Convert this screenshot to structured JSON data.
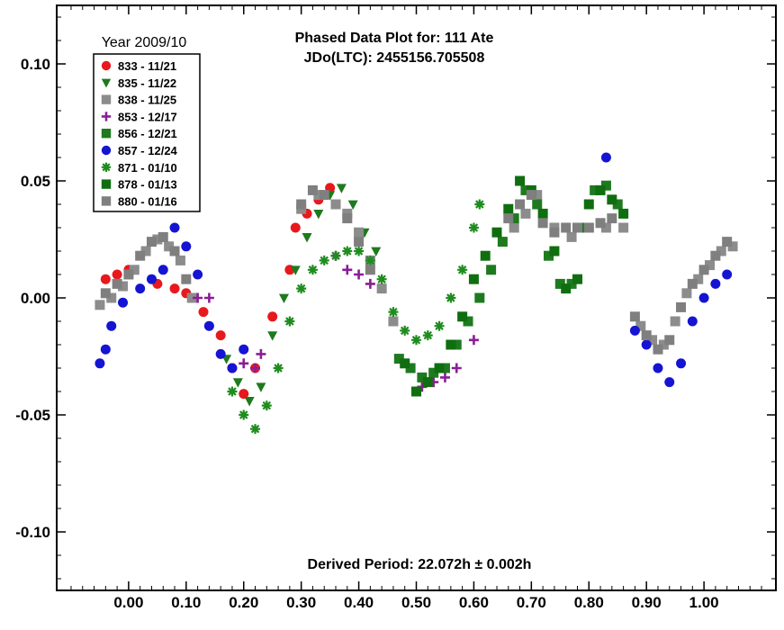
{
  "chart_data": {
    "type": "scatter",
    "title": "Phased Data Plot for: 111 Ate",
    "subtitle": "JDo(LTC): 2455156.705508",
    "annotation": "Derived Period: 22.072h ± 0.002h",
    "legend_title": "Year 2009/10",
    "legend_position": "top-left",
    "xlabel": "",
    "ylabel": "",
    "xlim": [
      -0.125,
      1.125
    ],
    "ylim": [
      0.125,
      -0.125
    ],
    "y_inverted": true,
    "grid": false,
    "x_ticks": [
      "0.00",
      "0.10",
      "0.20",
      "0.30",
      "0.40",
      "0.50",
      "0.60",
      "0.70",
      "0.80",
      "0.90",
      "1.00"
    ],
    "y_ticks": [
      "-0.10",
      "-0.05",
      "0.00",
      "0.05",
      "0.10"
    ],
    "series": [
      {
        "name": "833 - 11/21",
        "marker": "circle",
        "color": "#e8181c",
        "points": [
          [
            -0.04,
            0.008
          ],
          [
            -0.02,
            0.01
          ],
          [
            0.0,
            0.012
          ],
          [
            0.05,
            0.006
          ],
          [
            0.08,
            0.004
          ],
          [
            0.1,
            0.002
          ],
          [
            0.13,
            -0.006
          ],
          [
            0.16,
            -0.016
          ],
          [
            0.18,
            -0.03
          ],
          [
            0.2,
            -0.041
          ],
          [
            0.22,
            -0.03
          ],
          [
            0.25,
            -0.008
          ],
          [
            0.28,
            0.012
          ],
          [
            0.29,
            0.03
          ],
          [
            0.31,
            0.036
          ],
          [
            0.33,
            0.042
          ],
          [
            0.35,
            0.047
          ]
        ]
      },
      {
        "name": "835 - 11/22",
        "marker": "triangle-down",
        "color": "#1e7a1e",
        "points": [
          [
            0.17,
            -0.026
          ],
          [
            0.19,
            -0.036
          ],
          [
            0.21,
            -0.044
          ],
          [
            0.23,
            -0.038
          ],
          [
            0.25,
            -0.016
          ],
          [
            0.27,
            0.0
          ],
          [
            0.29,
            0.012
          ],
          [
            0.31,
            0.026
          ],
          [
            0.33,
            0.036
          ],
          [
            0.35,
            0.044
          ],
          [
            0.37,
            0.047
          ],
          [
            0.39,
            0.04
          ],
          [
            0.41,
            0.028
          ],
          [
            0.43,
            0.02
          ]
        ]
      },
      {
        "name": "838 - 11/25",
        "marker": "square",
        "color": "#8c8c8c",
        "points": [
          [
            -0.05,
            -0.003
          ],
          [
            -0.03,
            0.0
          ],
          [
            -0.01,
            0.005
          ],
          [
            0.01,
            0.012
          ],
          [
            0.03,
            0.02
          ],
          [
            0.05,
            0.025
          ],
          [
            0.07,
            0.022
          ],
          [
            0.09,
            0.016
          ],
          [
            0.11,
            0.0
          ],
          [
            0.3,
            0.038
          ],
          [
            0.33,
            0.044
          ],
          [
            0.36,
            0.04
          ],
          [
            0.38,
            0.036
          ],
          [
            0.4,
            0.028
          ],
          [
            0.42,
            0.016
          ],
          [
            0.44,
            0.004
          ],
          [
            0.46,
            -0.01
          ],
          [
            0.67,
            0.03
          ],
          [
            0.69,
            0.036
          ],
          [
            0.71,
            0.044
          ],
          [
            0.74,
            0.03
          ],
          [
            0.77,
            0.026
          ],
          [
            0.8,
            0.03
          ],
          [
            0.83,
            0.03
          ],
          [
            0.86,
            0.03
          ],
          [
            0.89,
            -0.012
          ],
          [
            0.91,
            -0.018
          ],
          [
            0.93,
            -0.02
          ],
          [
            0.95,
            -0.01
          ],
          [
            0.97,
            0.002
          ],
          [
            0.99,
            0.008
          ],
          [
            1.01,
            0.014
          ],
          [
            1.03,
            0.02
          ],
          [
            1.05,
            0.022
          ]
        ]
      },
      {
        "name": "853 - 12/17",
        "marker": "plus",
        "color": "#8a1e96",
        "points": [
          [
            0.12,
            0.0
          ],
          [
            0.14,
            0.0
          ],
          [
            0.2,
            -0.028
          ],
          [
            0.22,
            -0.03
          ],
          [
            0.23,
            -0.024
          ],
          [
            0.36,
            0.018
          ],
          [
            0.38,
            0.012
          ],
          [
            0.4,
            0.01
          ],
          [
            0.42,
            0.006
          ],
          [
            0.51,
            -0.038
          ],
          [
            0.53,
            -0.036
          ],
          [
            0.55,
            -0.034
          ],
          [
            0.57,
            -0.03
          ],
          [
            0.6,
            -0.018
          ]
        ]
      },
      {
        "name": "856 - 12/21",
        "marker": "square",
        "color": "#1e7a1e",
        "points": [
          [
            0.47,
            -0.026
          ],
          [
            0.49,
            -0.03
          ],
          [
            0.51,
            -0.034
          ],
          [
            0.53,
            -0.032
          ],
          [
            0.55,
            -0.03
          ],
          [
            0.57,
            -0.02
          ],
          [
            0.59,
            -0.01
          ],
          [
            0.61,
            0.0
          ],
          [
            0.63,
            0.012
          ],
          [
            0.65,
            0.024
          ],
          [
            0.67,
            0.034
          ],
          [
            0.69,
            0.046
          ],
          [
            0.71,
            0.04
          ],
          [
            0.73,
            0.018
          ],
          [
            0.75,
            0.006
          ],
          [
            0.77,
            0.006
          ],
          [
            0.79,
            0.03
          ],
          [
            0.81,
            0.046
          ],
          [
            0.83,
            0.048
          ],
          [
            0.85,
            0.04
          ]
        ]
      },
      {
        "name": "857 - 12/24",
        "marker": "circle",
        "color": "#1414d2",
        "points": [
          [
            -0.05,
            -0.028
          ],
          [
            -0.04,
            -0.022
          ],
          [
            -0.03,
            -0.012
          ],
          [
            -0.01,
            -0.002
          ],
          [
            0.02,
            0.004
          ],
          [
            0.04,
            0.008
          ],
          [
            0.06,
            0.012
          ],
          [
            0.08,
            0.03
          ],
          [
            0.1,
            0.022
          ],
          [
            0.12,
            0.01
          ],
          [
            0.14,
            -0.012
          ],
          [
            0.16,
            -0.024
          ],
          [
            0.18,
            -0.03
          ],
          [
            0.2,
            -0.022
          ],
          [
            0.83,
            0.06
          ],
          [
            0.88,
            -0.014
          ],
          [
            0.9,
            -0.02
          ],
          [
            0.92,
            -0.03
          ],
          [
            0.94,
            -0.036
          ],
          [
            0.96,
            -0.028
          ],
          [
            0.98,
            -0.01
          ],
          [
            1.0,
            0.0
          ],
          [
            1.02,
            0.006
          ],
          [
            1.04,
            0.01
          ]
        ]
      },
      {
        "name": "871 - 01/10",
        "marker": "asterisk",
        "color": "#1e8c1e",
        "points": [
          [
            0.18,
            -0.04
          ],
          [
            0.2,
            -0.05
          ],
          [
            0.22,
            -0.056
          ],
          [
            0.24,
            -0.046
          ],
          [
            0.26,
            -0.03
          ],
          [
            0.28,
            -0.01
          ],
          [
            0.3,
            0.004
          ],
          [
            0.32,
            0.012
          ],
          [
            0.34,
            0.016
          ],
          [
            0.36,
            0.018
          ],
          [
            0.38,
            0.02
          ],
          [
            0.4,
            0.02
          ],
          [
            0.42,
            0.016
          ],
          [
            0.44,
            0.008
          ],
          [
            0.46,
            -0.006
          ],
          [
            0.48,
            -0.014
          ],
          [
            0.5,
            -0.018
          ],
          [
            0.52,
            -0.016
          ],
          [
            0.54,
            -0.012
          ],
          [
            0.56,
            0.0
          ],
          [
            0.58,
            0.012
          ],
          [
            0.6,
            0.03
          ],
          [
            0.61,
            0.04
          ]
        ]
      },
      {
        "name": "878 - 01/13",
        "marker": "square",
        "color": "#0f6e0f",
        "points": [
          [
            0.48,
            -0.028
          ],
          [
            0.5,
            -0.04
          ],
          [
            0.52,
            -0.036
          ],
          [
            0.54,
            -0.03
          ],
          [
            0.56,
            -0.02
          ],
          [
            0.58,
            -0.008
          ],
          [
            0.6,
            0.008
          ],
          [
            0.62,
            0.018
          ],
          [
            0.64,
            0.028
          ],
          [
            0.66,
            0.038
          ],
          [
            0.68,
            0.05
          ],
          [
            0.7,
            0.046
          ],
          [
            0.72,
            0.036
          ],
          [
            0.74,
            0.02
          ],
          [
            0.76,
            0.004
          ],
          [
            0.78,
            0.008
          ],
          [
            0.8,
            0.04
          ],
          [
            0.82,
            0.046
          ],
          [
            0.84,
            0.042
          ],
          [
            0.86,
            0.036
          ]
        ]
      },
      {
        "name": "880 - 01/16",
        "marker": "square",
        "color": "#7f7f7f",
        "points": [
          [
            -0.04,
            0.002
          ],
          [
            -0.02,
            0.006
          ],
          [
            0.0,
            0.01
          ],
          [
            0.02,
            0.018
          ],
          [
            0.04,
            0.024
          ],
          [
            0.06,
            0.026
          ],
          [
            0.08,
            0.02
          ],
          [
            0.1,
            0.008
          ],
          [
            0.3,
            0.04
          ],
          [
            0.32,
            0.046
          ],
          [
            0.34,
            0.044
          ],
          [
            0.38,
            0.034
          ],
          [
            0.4,
            0.024
          ],
          [
            0.42,
            0.012
          ],
          [
            0.66,
            0.034
          ],
          [
            0.68,
            0.04
          ],
          [
            0.7,
            0.044
          ],
          [
            0.72,
            0.032
          ],
          [
            0.74,
            0.028
          ],
          [
            0.76,
            0.03
          ],
          [
            0.78,
            0.03
          ],
          [
            0.8,
            0.03
          ],
          [
            0.82,
            0.032
          ],
          [
            0.84,
            0.034
          ],
          [
            0.88,
            -0.008
          ],
          [
            0.9,
            -0.016
          ],
          [
            0.92,
            -0.022
          ],
          [
            0.94,
            -0.018
          ],
          [
            0.96,
            -0.004
          ],
          [
            0.98,
            0.006
          ],
          [
            1.0,
            0.012
          ],
          [
            1.02,
            0.018
          ],
          [
            1.04,
            0.024
          ]
        ]
      }
    ]
  }
}
